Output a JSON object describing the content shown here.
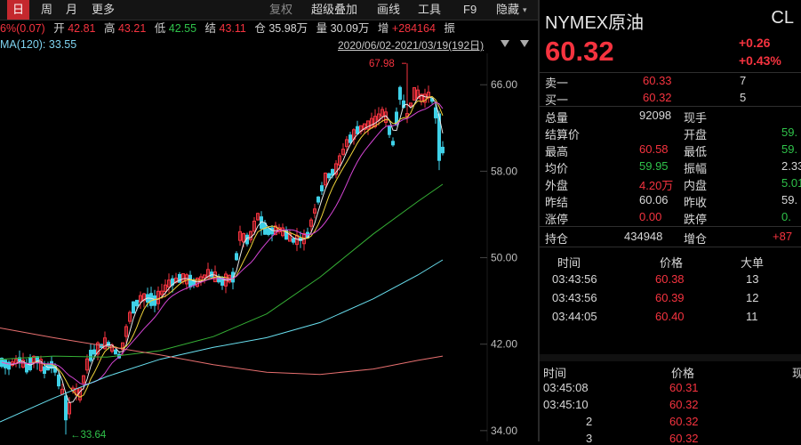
{
  "toolbar": {
    "tabs": [
      "日",
      "周",
      "月",
      "更多"
    ],
    "tools": [
      "复权",
      "超级叠加",
      "画线",
      "工具",
      "F9",
      "隐藏"
    ]
  },
  "infoline": {
    "change": "6%(0.07)",
    "open_label": "开",
    "open": "42.81",
    "high_label": "高",
    "high": "43.21",
    "low_label": "低",
    "low": "42.55",
    "close_label": "结",
    "close": "43.11",
    "oi_label": "仓",
    "oi": "35.98万",
    "vol_label": "量",
    "vol": "30.09万",
    "inc_label": "增",
    "inc": "+284164",
    "amp_label": "振"
  },
  "ma": {
    "label": "MA(120): 33.55"
  },
  "date_range": "2020/06/02-2021/03/19(192日)",
  "chart_data": {
    "type": "candlestick",
    "y_ticks": [
      66.0,
      58.0,
      50.0,
      42.0,
      34.0
    ],
    "ylim": [
      33.0,
      68.9
    ],
    "annotations": {
      "high": "67.98",
      "low": "←33.64"
    },
    "colors": {
      "up": "#f5333f",
      "down": "#3fd1e8",
      "ma5": "#e9e9e9",
      "ma10": "#f0d43a",
      "ma20": "#d545d5",
      "ma60": "#35b035",
      "ma120": "#69e0f0",
      "ma250": "#e87070"
    }
  },
  "quote": {
    "name": "NYMEX原油",
    "code": "CL",
    "price": "60.32",
    "change": "+0.26",
    "change_pct": "+0.43%",
    "ask_label": "卖一",
    "ask": "60.33",
    "ask_vol": "7",
    "bid_label": "买一",
    "bid": "60.32",
    "bid_vol": "5",
    "stats": [
      {
        "l1": "总量",
        "v1": "92098",
        "c1": "wht",
        "l2": "现手",
        "v2": "",
        "c2": "wht"
      },
      {
        "l1": "结算价",
        "v1": "",
        "c1": "wht",
        "l2": "开盘",
        "v2": "59.",
        "c2": "green"
      },
      {
        "l1": "最高",
        "v1": "60.58",
        "c1": "red",
        "l2": "最低",
        "v2": "59.",
        "c2": "green"
      },
      {
        "l1": "均价",
        "v1": "59.95",
        "c1": "green",
        "l2": "振幅",
        "v2": "2.33",
        "c2": "wht"
      },
      {
        "l1": "外盘",
        "v1": "4.20万",
        "c1": "red",
        "l2": "内盘",
        "v2": "5.01",
        "c2": "green"
      },
      {
        "l1": "昨结",
        "v1": "60.06",
        "c1": "wht",
        "l2": "昨收",
        "v2": "59.",
        "c2": "wht"
      },
      {
        "l1": "涨停",
        "v1": "0.00",
        "c1": "red",
        "l2": "跌停",
        "v2": "0.",
        "c2": "green"
      }
    ],
    "oi_label": "持仓",
    "oi": "434948",
    "inc_label": "增仓",
    "inc": "+87"
  },
  "trades1": {
    "headers": [
      "时间",
      "价格",
      "大单"
    ],
    "rows": [
      {
        "time": "03:43:56",
        "price": "60.38",
        "size": "13"
      },
      {
        "time": "03:43:56",
        "price": "60.39",
        "size": "12"
      },
      {
        "time": "03:44:05",
        "price": "60.40",
        "size": "11"
      }
    ]
  },
  "trades2": {
    "headers": [
      "时间",
      "价格",
      "现"
    ],
    "rows": [
      {
        "time": "03:45:08",
        "price": "60.31"
      },
      {
        "time": "03:45:10",
        "price": "60.32"
      },
      {
        "time": "2",
        "price": "60.32"
      },
      {
        "time": "3",
        "price": "60.32"
      }
    ]
  }
}
